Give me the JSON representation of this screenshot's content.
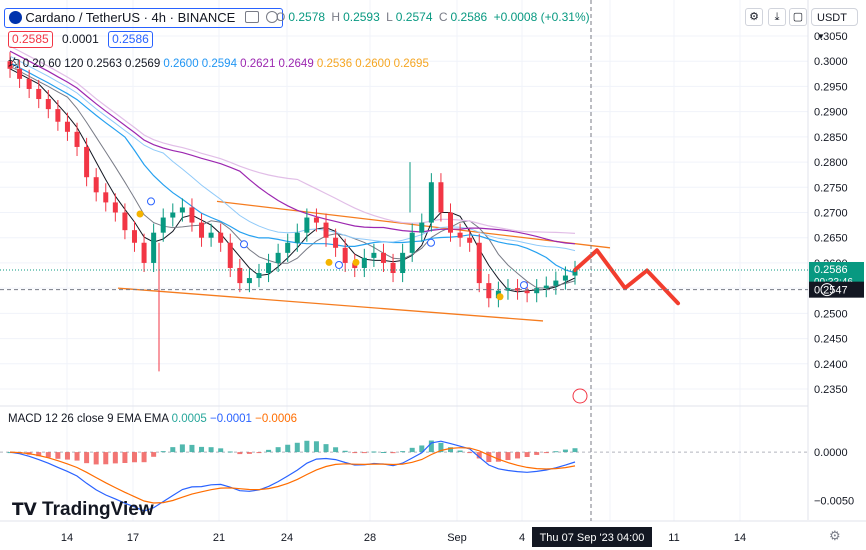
{
  "header": {
    "symbol": "Cardano / TetherUS · 4h · BINANCE",
    "ohlc": {
      "o_label": "O",
      "o": "0.2578",
      "h_label": "H",
      "h": "0.2593",
      "l_label": "L",
      "l": "0.2574",
      "c_label": "C",
      "c": "0.2586",
      "change": "+0.0008 (+0.31%)"
    },
    "bid": "0.2585",
    "spread": "0.0001",
    "ask": "0.2586",
    "currency": "USDT"
  },
  "ma_legend": {
    "label": "均",
    "params": "0 20 60 120",
    "values": [
      {
        "v": "0.2563",
        "color": "#131722"
      },
      {
        "v": "0.2569",
        "color": "#131722"
      },
      {
        "v": "0.2600",
        "color": "#2196f3"
      },
      {
        "v": "0.2594",
        "color": "#2196f3"
      },
      {
        "v": "0.2621",
        "color": "#9c27b0"
      },
      {
        "v": "0.2649",
        "color": "#9c27b0"
      },
      {
        "v": "0.2536",
        "color": "#f5a623"
      },
      {
        "v": "0.2600",
        "color": "#f5a623"
      },
      {
        "v": "0.2695",
        "color": "#f5a623"
      }
    ]
  },
  "macd_legend": {
    "title": "MACD 12 26 close 9 EMA EMA",
    "v1": "0.0005",
    "v2": "−0.0001",
    "v3": "−0.0006"
  },
  "price_axis": {
    "ticks": [
      "0.3050",
      "0.3000",
      "0.2950",
      "0.2900",
      "0.2850",
      "0.2800",
      "0.2750",
      "0.2700",
      "0.2650",
      "0.2600",
      "0.2550",
      "0.2500",
      "0.2450",
      "0.2400",
      "0.2350"
    ],
    "last_price": "0.2586",
    "countdown": "00:33:46",
    "crosshair_price": "0.2547"
  },
  "macd_axis": {
    "ticks": [
      "0.0000",
      "−0.0050"
    ]
  },
  "time_axis": {
    "ticks": [
      "14",
      "17",
      "21",
      "24",
      "28",
      "Sep",
      "4",
      "7",
      "11",
      "14"
    ],
    "crosshair_label": "Thu 07 Sep '23   04:00"
  },
  "branding": "TradingView",
  "colors": {
    "up": "#089981",
    "down": "#f23645",
    "ma_fast": "#131722",
    "ma_mid": "#26a1f0",
    "ma_slow": "#9c27b0",
    "ma_slow2": "#e1bee7",
    "channel": "#f57c1f",
    "forecast": "#f23d2e",
    "macd_line": "#2962ff",
    "signal_line": "#ff6d00"
  },
  "chart_data": {
    "type": "candlestick",
    "interval": "4h",
    "x_unit": "date (bars)",
    "ylim": [
      0.233,
      0.3075
    ],
    "price_series": [
      0.2985,
      0.2965,
      0.2945,
      0.2925,
      0.2905,
      0.288,
      0.286,
      0.283,
      0.277,
      0.274,
      0.272,
      0.27,
      0.2665,
      0.264,
      0.26,
      0.266,
      0.269,
      0.27,
      0.271,
      0.268,
      0.265,
      0.266,
      0.264,
      0.259,
      0.256,
      0.257,
      0.258,
      0.26,
      0.262,
      0.264,
      0.266,
      0.269,
      0.268,
      0.265,
      0.263,
      0.26,
      0.259,
      0.261,
      0.262,
      0.26,
      0.258,
      0.262,
      0.266,
      0.268,
      0.276,
      0.27,
      0.266,
      0.265,
      0.264,
      0.256,
      0.253,
      0.2545,
      0.255,
      0.2545,
      0.254,
      0.255,
      0.2555,
      0.2565,
      0.2575,
      0.2586
    ],
    "spike_low": 0.2385,
    "spike_high": 0.28,
    "forecast_path": [
      0.2586,
      0.2625,
      0.255,
      0.2585,
      0.252
    ],
    "channel_upper": [
      [
        0.2722,
        0.263
      ]
    ],
    "channel_lower": [
      [
        0.255,
        0.2485
      ]
    ],
    "macd": {
      "ylim": [
        -0.0065,
        0.0028
      ],
      "histogram_last": 0.0005,
      "macd_last": -0.0001,
      "signal_last": -0.0006
    }
  }
}
